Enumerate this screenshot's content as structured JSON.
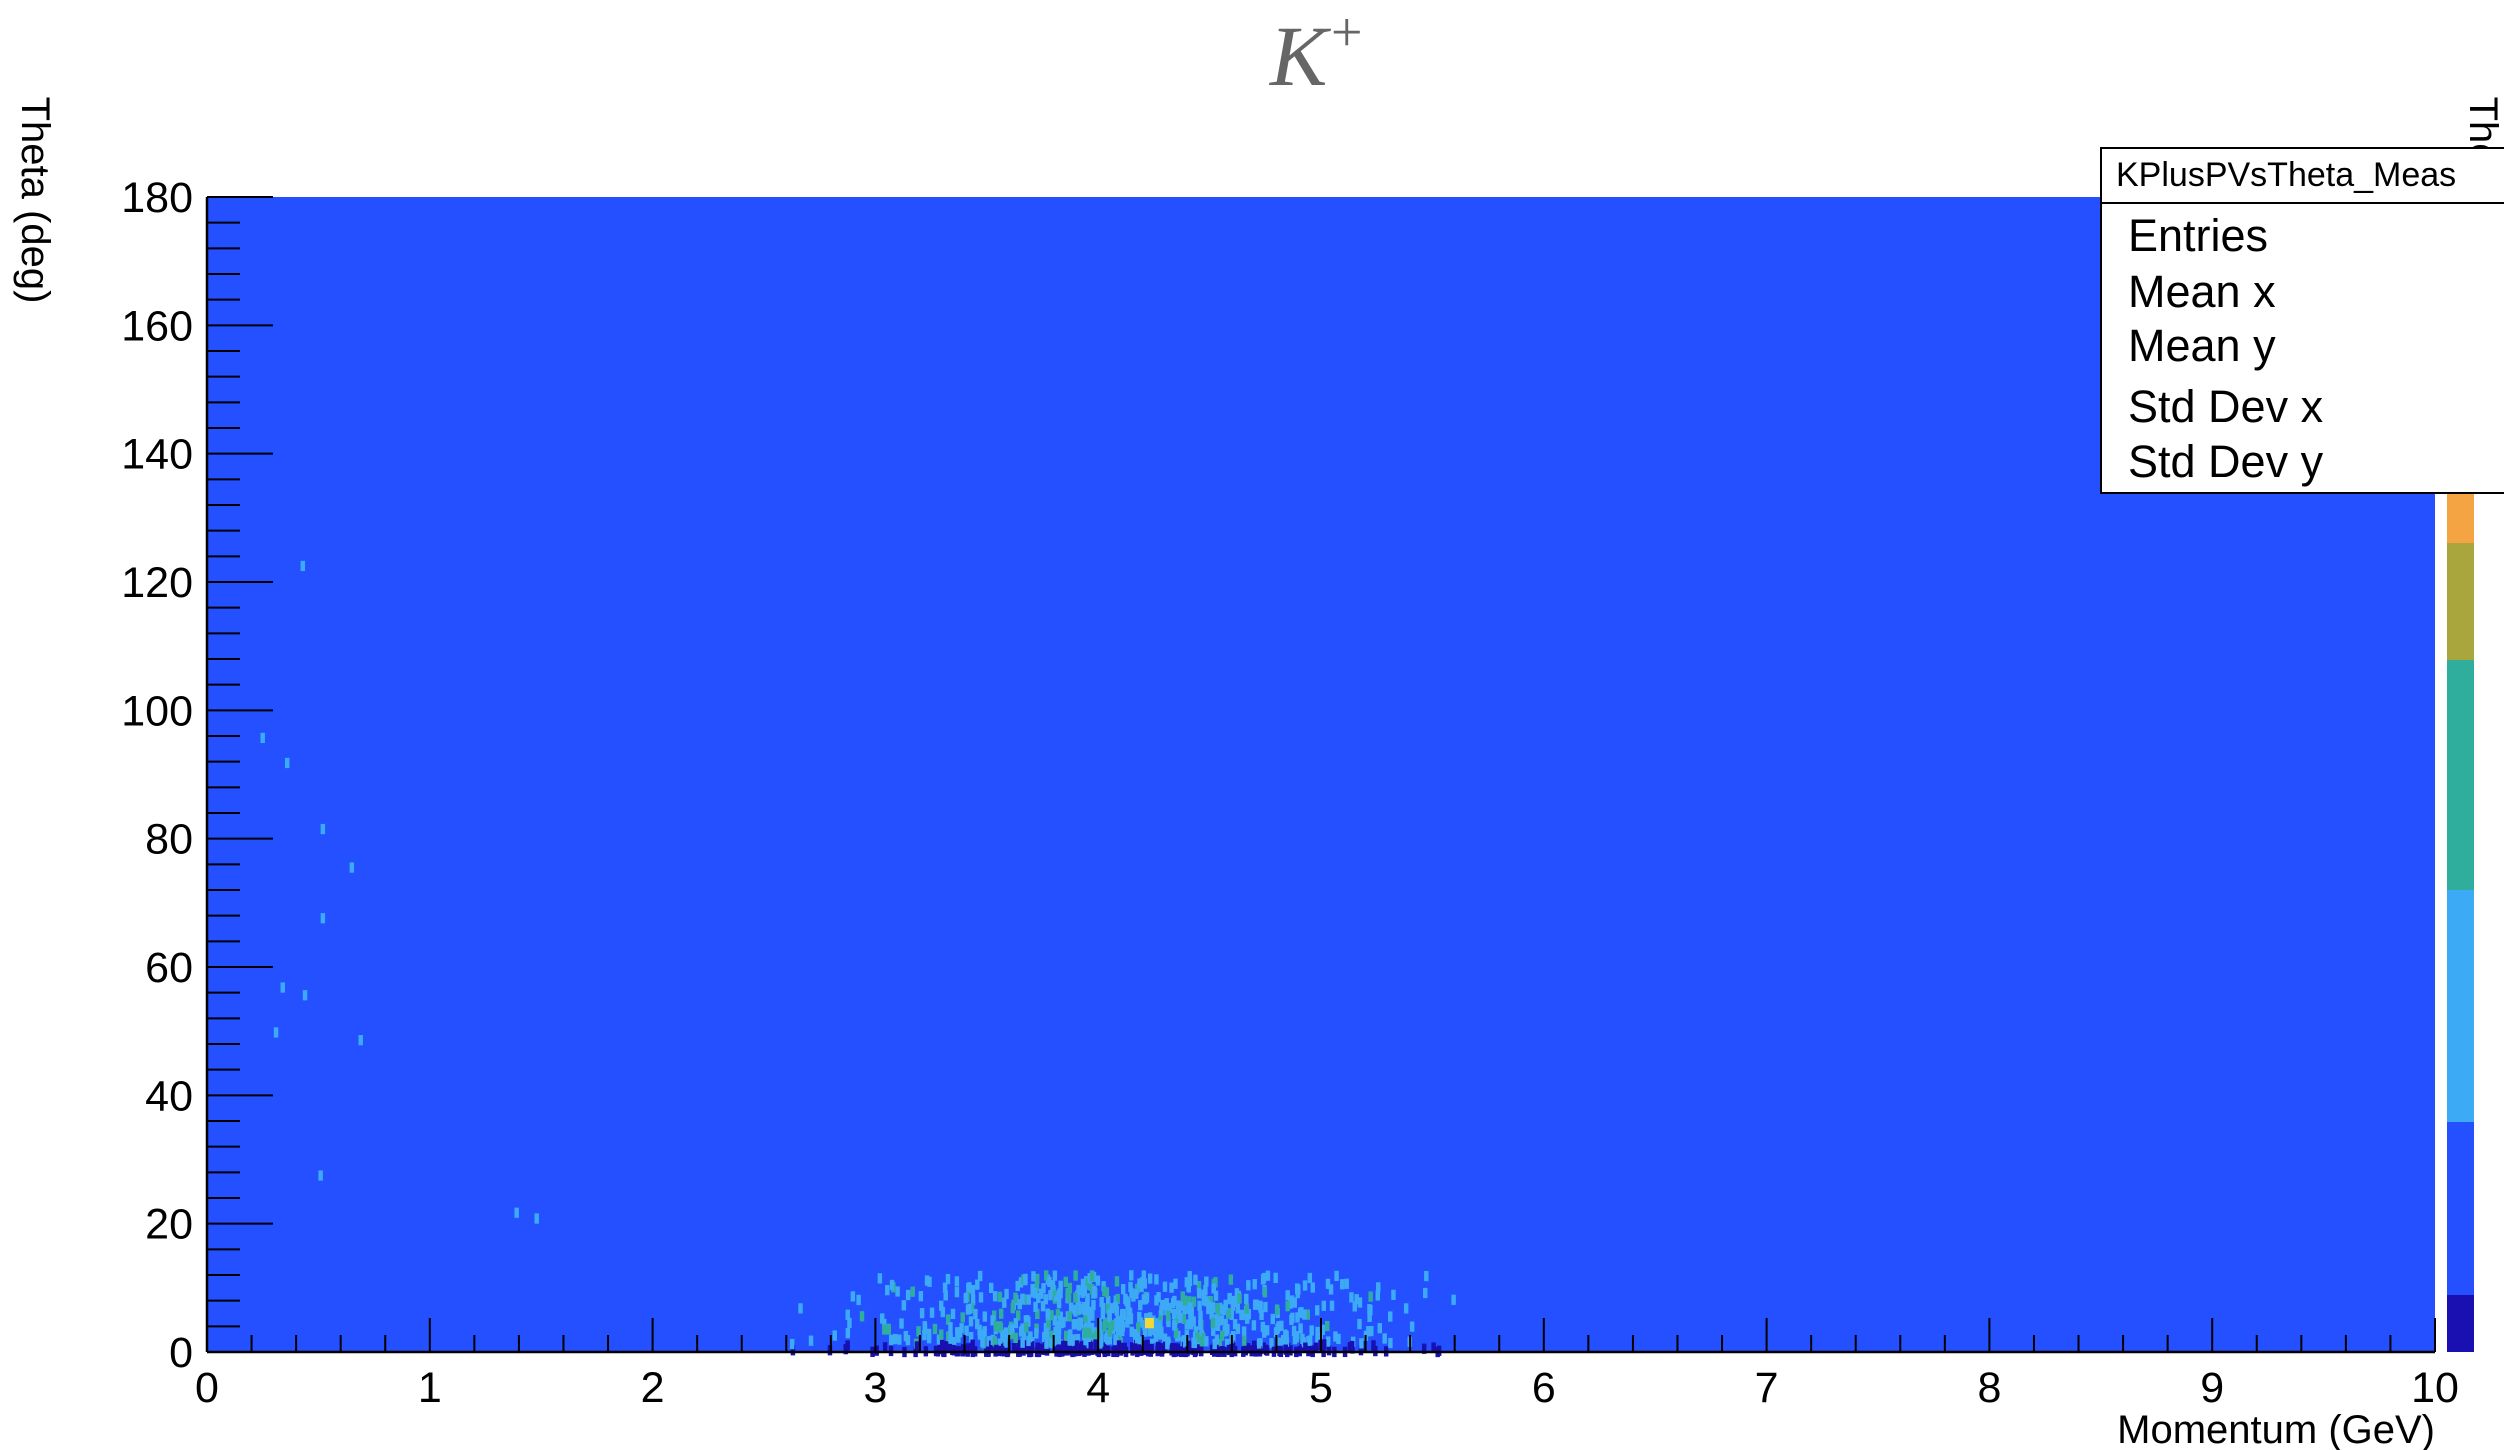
{
  "chart_data": {
    "type": "heatmap",
    "title_base": "K",
    "title_sup": "+",
    "xlabel": "Momentum (GeV)",
    "ylabel": "Theta (deg)",
    "zlabel": "Theta (deg)",
    "xlim": [
      0,
      10
    ],
    "ylim": [
      0,
      180
    ],
    "x_ticks": [
      "0",
      "1",
      "2",
      "3",
      "4",
      "5",
      "6",
      "7",
      "8",
      "9",
      "10"
    ],
    "y_ticks": [
      "0",
      "20",
      "40",
      "60",
      "80",
      "100",
      "120",
      "140",
      "160",
      "180"
    ],
    "stats_box": {
      "name": "KPlusPVsTheta_Meas",
      "rows": [
        "Entries",
        "Mean x",
        "Mean y",
        "Std Dev x",
        "Std Dev y"
      ]
    },
    "background_color": "#2450ff",
    "palette": [
      "#1a0fb0",
      "#2450ff",
      "#3caaf5",
      "#2fae9e",
      "#a9a63e",
      "#f4a442"
    ],
    "sparse_points": [
      {
        "x": 0.43,
        "y": 122.5,
        "level": 2
      },
      {
        "x": 0.25,
        "y": 95.7,
        "level": 2
      },
      {
        "x": 0.36,
        "y": 91.8,
        "level": 2
      },
      {
        "x": 0.52,
        "y": 81.5,
        "level": 2
      },
      {
        "x": 0.65,
        "y": 75.5,
        "level": 2
      },
      {
        "x": 0.52,
        "y": 67.6,
        "level": 2
      },
      {
        "x": 0.34,
        "y": 56.8,
        "level": 2
      },
      {
        "x": 0.44,
        "y": 55.6,
        "level": 2
      },
      {
        "x": 0.31,
        "y": 49.8,
        "level": 2
      },
      {
        "x": 0.69,
        "y": 48.6,
        "level": 2
      },
      {
        "x": 0.51,
        "y": 27.5,
        "level": 2
      },
      {
        "x": 1.39,
        "y": 21.7,
        "level": 2
      },
      {
        "x": 1.48,
        "y": 20.8,
        "level": 2
      }
    ],
    "dense_band": {
      "x_range": [
        2.4,
        5.8
      ],
      "peak_x": 3.8,
      "y_range": [
        0,
        12
      ],
      "hotspots": [
        {
          "x": 4.23,
          "y": 4.5,
          "level": 4
        },
        {
          "x": 3.55,
          "y": 4.0,
          "level": 3
        },
        {
          "x": 3.05,
          "y": 3.5,
          "level": 3
        },
        {
          "x": 3.95,
          "y": 3.0,
          "level": 3
        }
      ]
    }
  }
}
